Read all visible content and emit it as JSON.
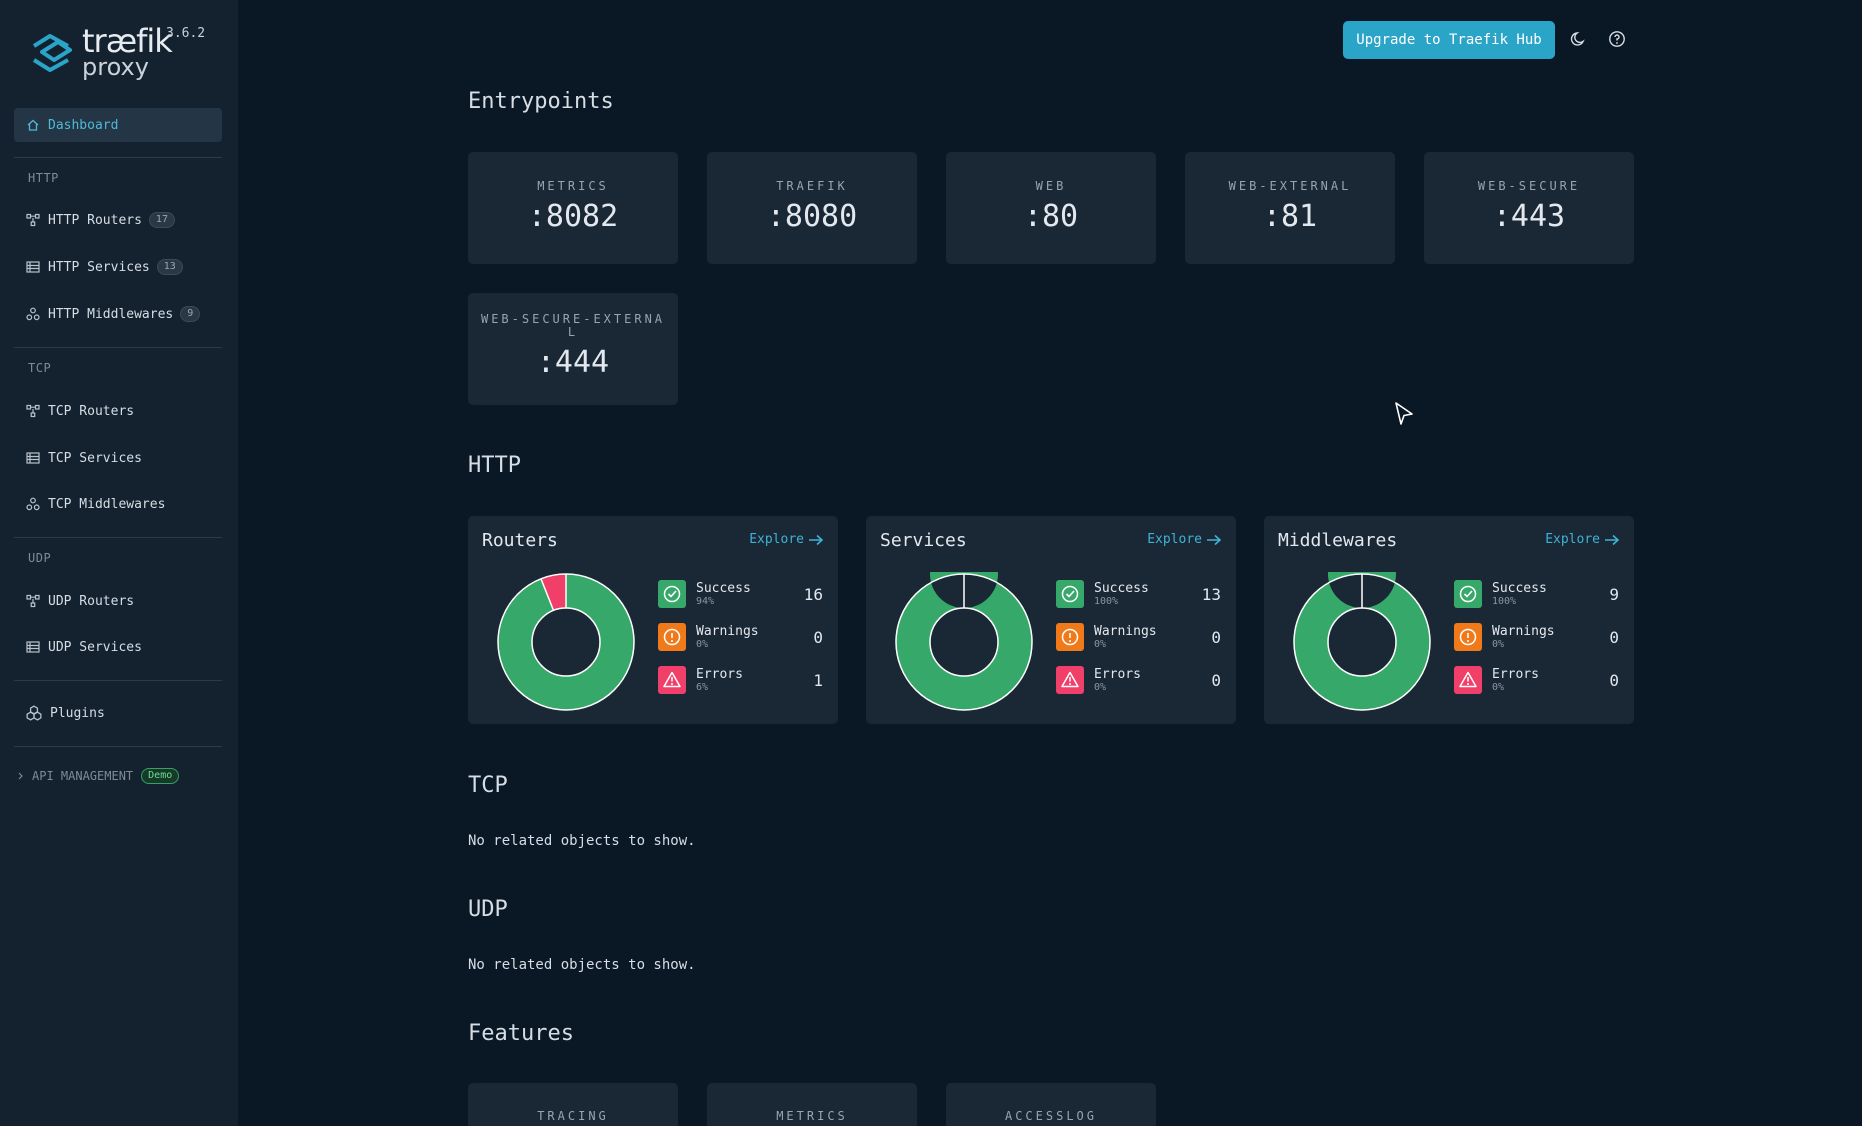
{
  "brand": {
    "name": "træfik",
    "product": "proxy",
    "version": "3.6.2",
    "accent": "#2aa5c8"
  },
  "sidebar": {
    "dashboard": {
      "label": "Dashboard",
      "icon": "home-icon"
    },
    "sections": {
      "http": "HTTP",
      "tcp": "TCP",
      "udp": "UDP"
    },
    "http_routers": {
      "label": "HTTP Routers",
      "count": "17",
      "icon": "router-icon"
    },
    "http_services": {
      "label": "HTTP Services",
      "count": "13",
      "icon": "services-icon"
    },
    "http_middlewares": {
      "label": "HTTP Middlewares",
      "count": "9",
      "icon": "middleware-icon"
    },
    "tcp_routers": {
      "label": "TCP Routers",
      "icon": "router-icon"
    },
    "tcp_services": {
      "label": "TCP Services",
      "icon": "services-icon"
    },
    "tcp_middlewares": {
      "label": "TCP Middlewares",
      "icon": "middleware-icon"
    },
    "udp_routers": {
      "label": "UDP Routers",
      "icon": "router-icon"
    },
    "udp_services": {
      "label": "UDP Services",
      "icon": "services-icon"
    },
    "plugins": {
      "label": "Plugins",
      "icon": "plugins-icon"
    },
    "api_management": {
      "label": "API MANAGEMENT",
      "badge": "Demo",
      "icon": "chevron-right-icon"
    }
  },
  "topbar": {
    "upgrade_label": "Upgrade to Traefik Hub",
    "theme_icon": "moon-icon",
    "help_icon": "help-icon"
  },
  "headings": {
    "entrypoints": "Entrypoints",
    "http": "HTTP",
    "tcp": "TCP",
    "udp": "UDP",
    "features": "Features"
  },
  "entrypoints": [
    {
      "name": "METRICS",
      "port": ":8082"
    },
    {
      "name": "TRAEFIK",
      "port": ":8080"
    },
    {
      "name": "WEB",
      "port": ":80"
    },
    {
      "name": "WEB-EXTERNAL",
      "port": ":81"
    },
    {
      "name": "WEB-SECURE",
      "port": ":443"
    },
    {
      "name": "WEB-SECURE-EXTERNAL",
      "port": ":444"
    }
  ],
  "http_stats": [
    {
      "title": "Routers",
      "explore": "Explore",
      "success": {
        "label": "Success",
        "pct": "94%",
        "count": "16"
      },
      "warnings": {
        "label": "Warnings",
        "pct": "0%",
        "count": "0"
      },
      "errors": {
        "label": "Errors",
        "pct": "6%",
        "count": "1"
      },
      "fractions": {
        "success": 0.94,
        "warnings": 0,
        "errors": 0.06
      }
    },
    {
      "title": "Services",
      "explore": "Explore",
      "success": {
        "label": "Success",
        "pct": "100%",
        "count": "13"
      },
      "warnings": {
        "label": "Warnings",
        "pct": "0%",
        "count": "0"
      },
      "errors": {
        "label": "Errors",
        "pct": "0%",
        "count": "0"
      },
      "fractions": {
        "success": 1,
        "warnings": 0,
        "errors": 0
      }
    },
    {
      "title": "Middlewares",
      "explore": "Explore",
      "success": {
        "label": "Success",
        "pct": "100%",
        "count": "9"
      },
      "warnings": {
        "label": "Warnings",
        "pct": "0%",
        "count": "0"
      },
      "errors": {
        "label": "Errors",
        "pct": "0%",
        "count": "0"
      },
      "fractions": {
        "success": 1,
        "warnings": 0,
        "errors": 0
      }
    }
  ],
  "status_colors": {
    "success": "#36a86a",
    "warnings": "#f07a1a",
    "errors": "#f0406a"
  },
  "tcp_empty": "No related objects to show.",
  "udp_empty": "No related objects to show.",
  "features": [
    {
      "name": "TRACING"
    },
    {
      "name": "METRICS"
    },
    {
      "name": "ACCESSLOG"
    }
  ]
}
